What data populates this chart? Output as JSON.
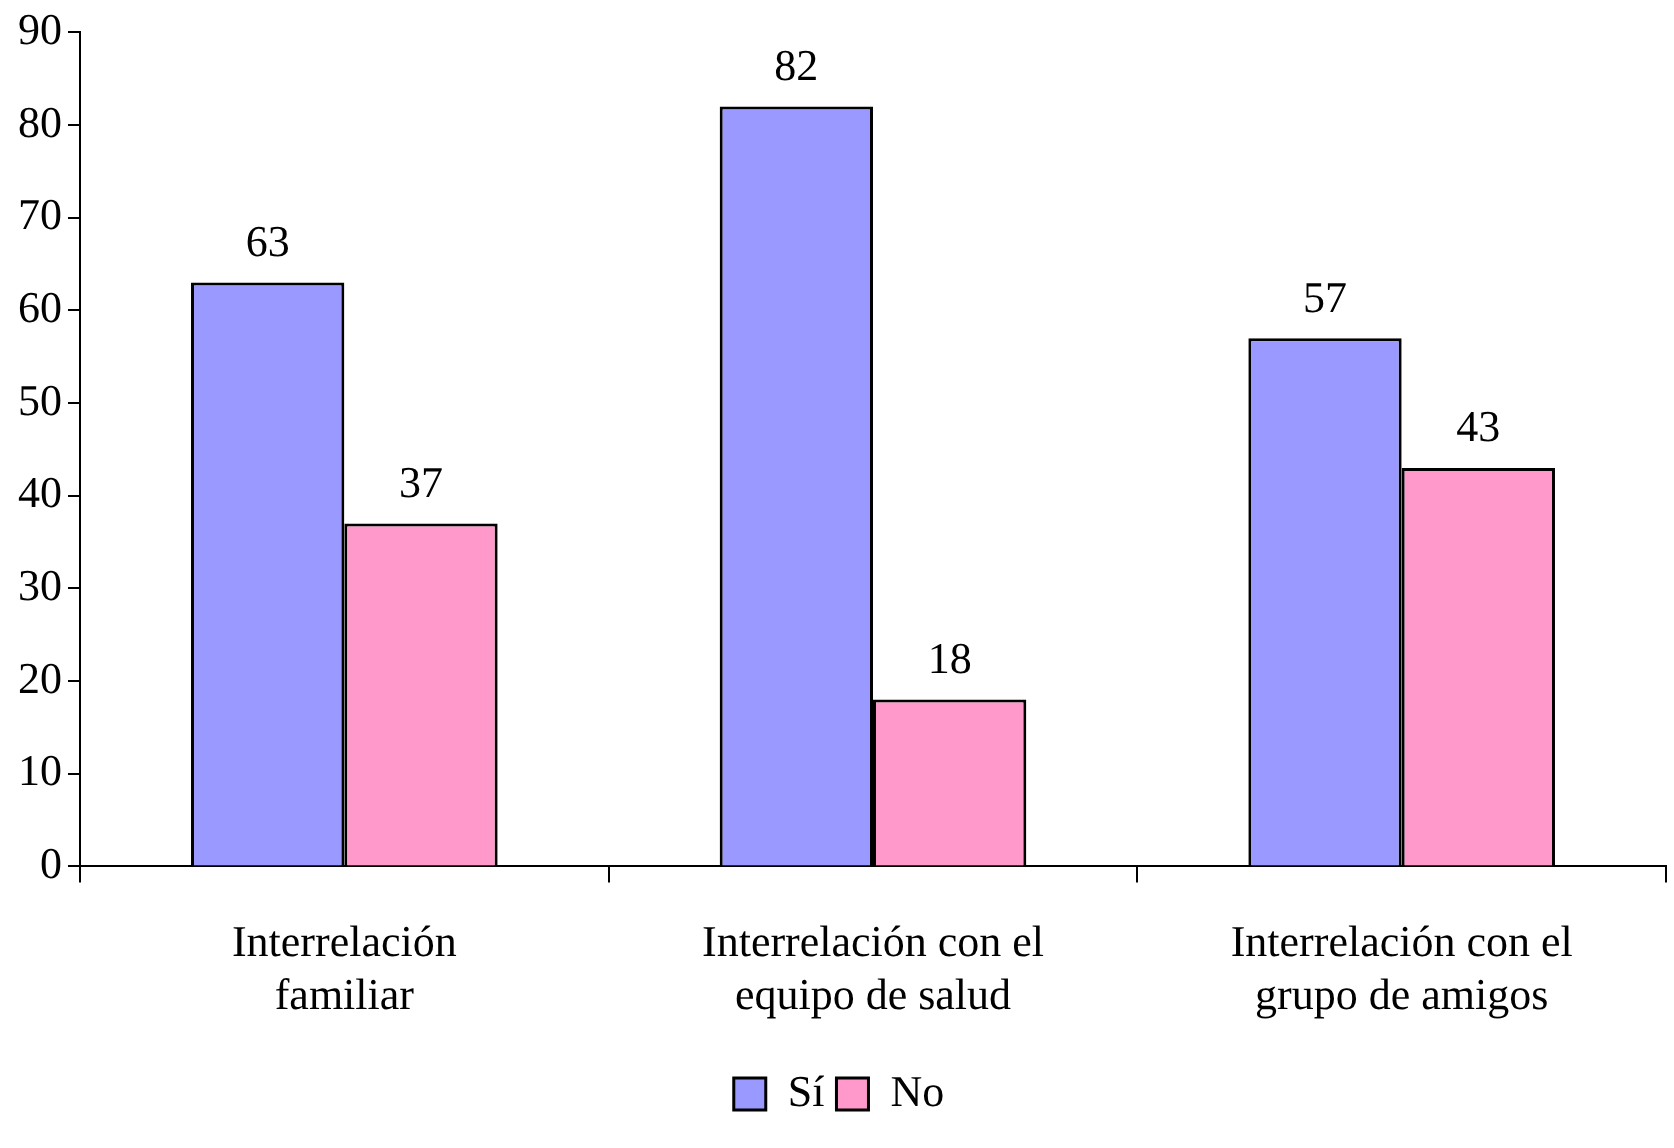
{
  "chart_data": {
    "type": "bar",
    "categories": [
      "Interrelación\nfamiliar",
      "Interrelación con el\nequipo de salud",
      "Interrelación con el\ngrupo de amigos"
    ],
    "series": [
      {
        "name": "Sí",
        "color": "#9999ff",
        "values": [
          63,
          82,
          57
        ]
      },
      {
        "name": "No",
        "color": "#ff99cc",
        "values": [
          37,
          18,
          43
        ]
      }
    ],
    "ylim": [
      0,
      90
    ],
    "yticks": [
      0,
      10,
      20,
      30,
      40,
      50,
      60,
      70,
      80,
      90
    ],
    "grid": false,
    "legend": "bottom",
    "data_labels": true
  }
}
